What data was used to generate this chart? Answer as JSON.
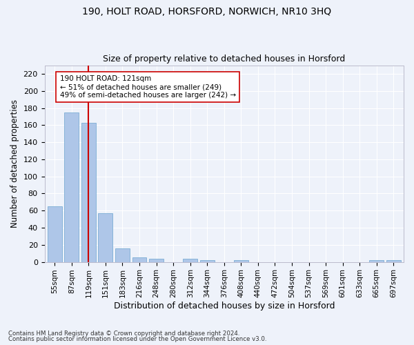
{
  "title1": "190, HOLT ROAD, HORSFORD, NORWICH, NR10 3HQ",
  "title2": "Size of property relative to detached houses in Horsford",
  "xlabel": "Distribution of detached houses by size in Horsford",
  "ylabel": "Number of detached properties",
  "categories": [
    "55sqm",
    "87sqm",
    "119sqm",
    "151sqm",
    "183sqm",
    "216sqm",
    "248sqm",
    "280sqm",
    "312sqm",
    "344sqm",
    "376sqm",
    "408sqm",
    "440sqm",
    "472sqm",
    "504sqm",
    "537sqm",
    "569sqm",
    "601sqm",
    "633sqm",
    "665sqm",
    "697sqm"
  ],
  "values": [
    65,
    175,
    163,
    57,
    16,
    5,
    4,
    0,
    4,
    2,
    0,
    2,
    0,
    0,
    0,
    0,
    0,
    0,
    0,
    2,
    2
  ],
  "bar_color": "#aec6e8",
  "bar_edge_color": "#7badd4",
  "vline_x": 2,
  "vline_color": "#cc0000",
  "annotation_text": "190 HOLT ROAD: 121sqm\n← 51% of detached houses are smaller (249)\n49% of semi-detached houses are larger (242) →",
  "annotation_box_color": "#ffffff",
  "annotation_box_edge": "#cc0000",
  "ylim": [
    0,
    230
  ],
  "yticks": [
    0,
    20,
    40,
    60,
    80,
    100,
    120,
    140,
    160,
    180,
    200,
    220
  ],
  "footnote1": "Contains HM Land Registry data © Crown copyright and database right 2024.",
  "footnote2": "Contains public sector information licensed under the Open Government Licence v3.0.",
  "background_color": "#eef2fa",
  "grid_color": "#ffffff",
  "title1_fontsize": 10,
  "title2_fontsize": 9
}
